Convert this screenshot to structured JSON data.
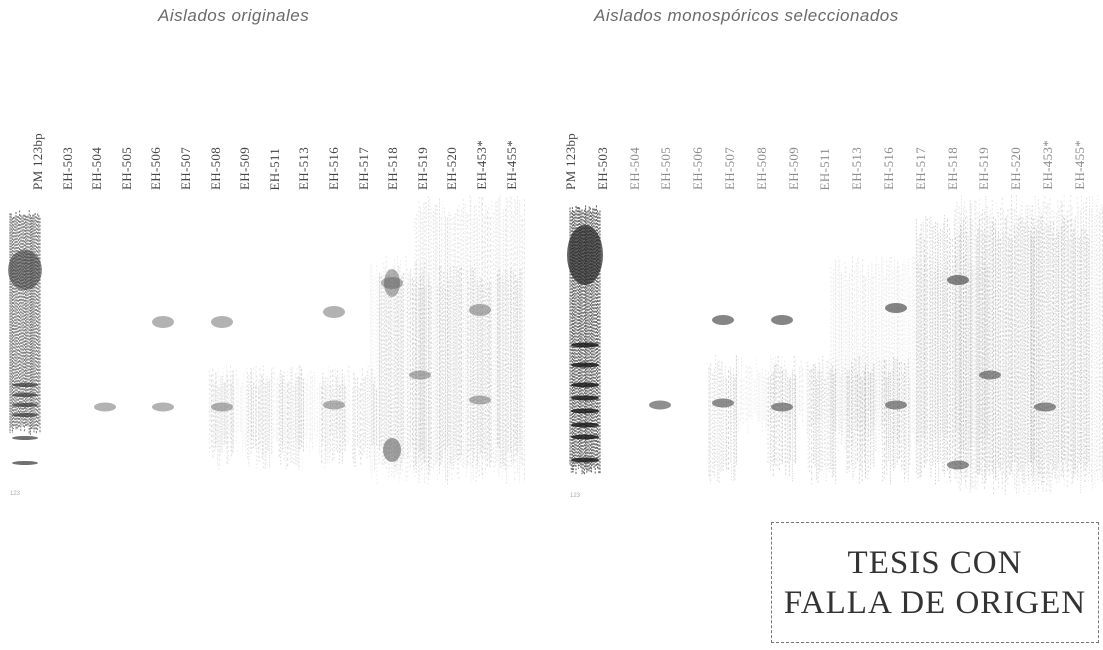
{
  "panels": {
    "left": {
      "title": "Aislados originales"
    },
    "right": {
      "title": "Aislados monospóricos seleccionados"
    }
  },
  "lanes": {
    "left": [
      "PM 123bp",
      "EH-503",
      "EH-504",
      "EH-505",
      "EH-506",
      "EH-507",
      "EH-508",
      "EH-509",
      "EH-511",
      "EH-513",
      "EH-516",
      "EH-517",
      "EH-518",
      "EH-519",
      "EH-520",
      "EH-453*",
      "EH-455*"
    ],
    "right": [
      "PM 123bp",
      "EH-503",
      "EH-504",
      "EH-505",
      "EH-506",
      "EH-507",
      "EH-508",
      "EH-509",
      "EH-511",
      "EH-513",
      "EH-516",
      "EH-517",
      "EH-518",
      "EH-519",
      "EH-520",
      "EH-453*",
      "EH-455*"
    ]
  },
  "stamp": {
    "line1": "TESIS CON",
    "line2": "FALLA DE ORIGEN"
  }
}
